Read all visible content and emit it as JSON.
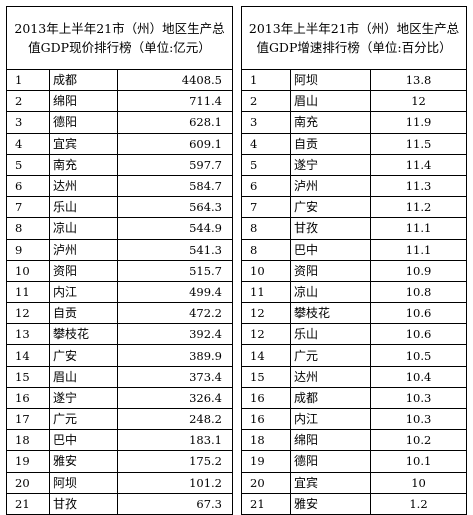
{
  "left": {
    "title": "2013年上半年21市（州）地区生产总值GDP现价排行榜（单位:亿元）",
    "rows": [
      {
        "rank": "1",
        "city": "成都",
        "value": "4408.5"
      },
      {
        "rank": "2",
        "city": "绵阳",
        "value": "711.4"
      },
      {
        "rank": "3",
        "city": "德阳",
        "value": "628.1"
      },
      {
        "rank": "4",
        "city": "宜宾",
        "value": "609.1"
      },
      {
        "rank": "5",
        "city": "南充",
        "value": "597.7"
      },
      {
        "rank": "6",
        "city": "达州",
        "value": "584.7"
      },
      {
        "rank": "7",
        "city": "乐山",
        "value": "564.3"
      },
      {
        "rank": "8",
        "city": "凉山",
        "value": "544.9"
      },
      {
        "rank": "9",
        "city": "泸州",
        "value": "541.3"
      },
      {
        "rank": "10",
        "city": "资阳",
        "value": "515.7"
      },
      {
        "rank": "11",
        "city": "内江",
        "value": "499.4"
      },
      {
        "rank": "12",
        "city": "自贡",
        "value": "472.2"
      },
      {
        "rank": "13",
        "city": "攀枝花",
        "value": "392.4"
      },
      {
        "rank": "14",
        "city": "广安",
        "value": "389.9"
      },
      {
        "rank": "15",
        "city": "眉山",
        "value": "373.4"
      },
      {
        "rank": "16",
        "city": "遂宁",
        "value": "326.4"
      },
      {
        "rank": "17",
        "city": "广元",
        "value": "248.2"
      },
      {
        "rank": "18",
        "city": "巴中",
        "value": "183.1"
      },
      {
        "rank": "19",
        "city": "雅安",
        "value": "175.2"
      },
      {
        "rank": "20",
        "city": "阿坝",
        "value": "101.2"
      },
      {
        "rank": "21",
        "city": "甘孜",
        "value": "67.3"
      }
    ]
  },
  "right": {
    "title": "2013年上半年21市（州）地区生产总值GDP增速排行榜（单位:百分比）",
    "rows": [
      {
        "rank": "1",
        "city": "阿坝",
        "value": "13.8"
      },
      {
        "rank": "2",
        "city": "眉山",
        "value": "12"
      },
      {
        "rank": "3",
        "city": "南充",
        "value": "11.9"
      },
      {
        "rank": "4",
        "city": "自贡",
        "value": "11.5"
      },
      {
        "rank": "5",
        "city": "遂宁",
        "value": "11.4"
      },
      {
        "rank": "6",
        "city": "泸州",
        "value": "11.3"
      },
      {
        "rank": "7",
        "city": "广安",
        "value": "11.2"
      },
      {
        "rank": "8",
        "city": "甘孜",
        "value": "11.1"
      },
      {
        "rank": "8",
        "city": "巴中",
        "value": "11.1"
      },
      {
        "rank": "10",
        "city": "资阳",
        "value": "10.9"
      },
      {
        "rank": "11",
        "city": "凉山",
        "value": "10.8"
      },
      {
        "rank": "12",
        "city": "攀枝花",
        "value": "10.6"
      },
      {
        "rank": "12",
        "city": "乐山",
        "value": "10.6"
      },
      {
        "rank": "14",
        "city": "广元",
        "value": "10.5"
      },
      {
        "rank": "15",
        "city": "达州",
        "value": "10.4"
      },
      {
        "rank": "16",
        "city": "成都",
        "value": "10.3"
      },
      {
        "rank": "16",
        "city": "内江",
        "value": "10.3"
      },
      {
        "rank": "18",
        "city": "绵阳",
        "value": "10.2"
      },
      {
        "rank": "19",
        "city": "德阳",
        "value": "10.1"
      },
      {
        "rank": "20",
        "city": "宜宾",
        "value": "10"
      },
      {
        "rank": "21",
        "city": "雅安",
        "value": "1.2"
      }
    ]
  }
}
